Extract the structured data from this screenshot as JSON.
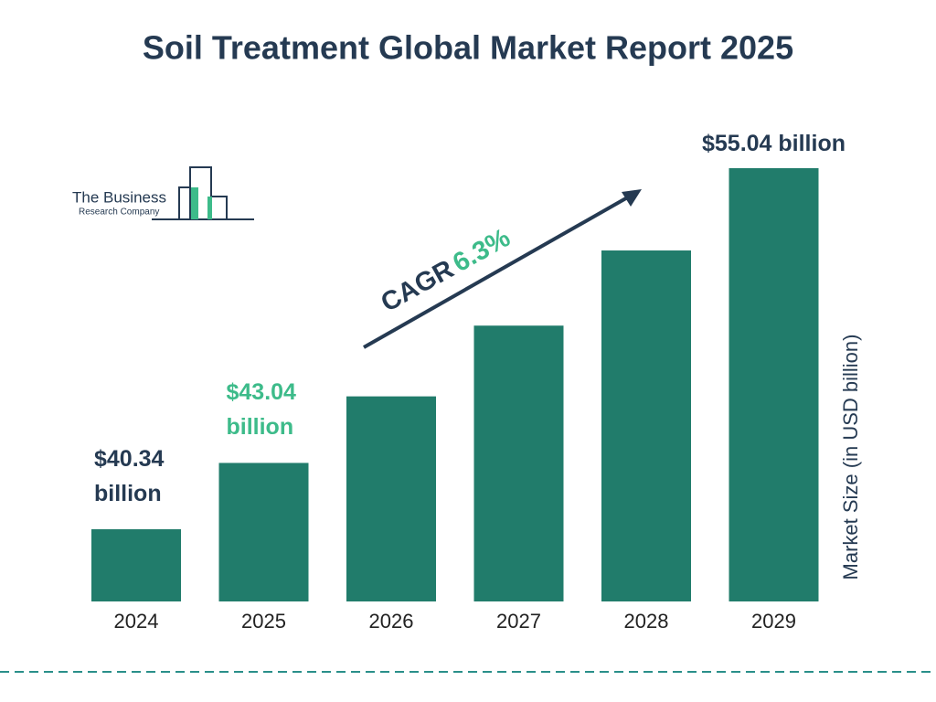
{
  "chart_data": {
    "type": "bar",
    "title": "Soil Treatment Global Market Report 2025",
    "categories": [
      "2024",
      "2025",
      "2026",
      "2027",
      "2028",
      "2029"
    ],
    "values": [
      40.34,
      43.04,
      45.75,
      48.63,
      51.69,
      55.04
    ],
    "value_labels": [
      "$40.34 billion",
      "$43.04 billion",
      null,
      null,
      null,
      "$55.04 billion"
    ],
    "color": "#217c6b",
    "ylim": [
      37.4,
      55.04
    ],
    "y_label": "Market Size (in USD billion)",
    "annotation": {
      "label": "CAGR",
      "value": "6.3%"
    },
    "logo": [
      "The Business",
      "Research Company"
    ]
  }
}
